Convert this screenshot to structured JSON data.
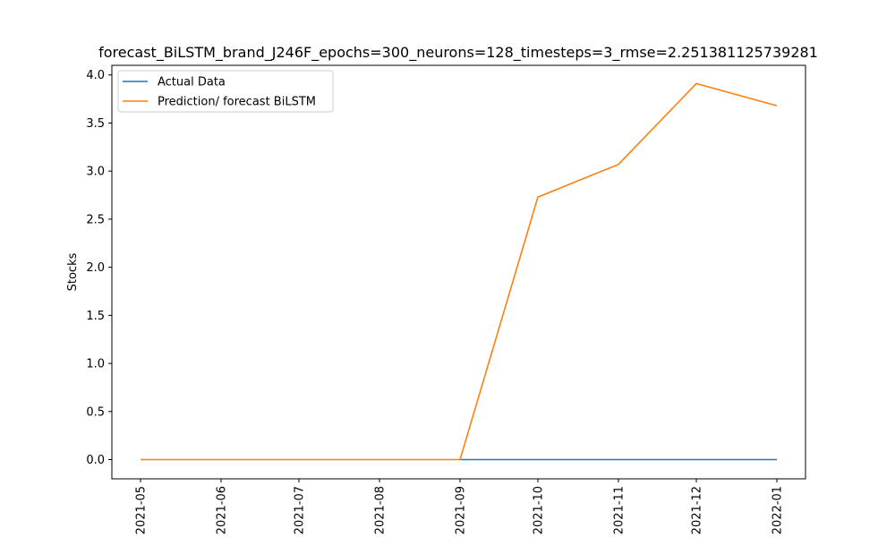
{
  "chart_data": {
    "type": "line",
    "title": "forecast_BiLSTM_brand_J246F_epochs=300_neurons=128_timesteps=3_rmse=2.251381125739281",
    "xlabel": "",
    "ylabel": "Stocks",
    "x": [
      "2021-05-01",
      "2021-06-01",
      "2021-07-01",
      "2021-08-01",
      "2021-09-01",
      "2021-10-01",
      "2021-11-01",
      "2021-12-01",
      "2022-01-01"
    ],
    "x_tick_labels": [
      "2021-05",
      "2021-06",
      "2021-07",
      "2021-08",
      "2021-09",
      "2021-10",
      "2021-11",
      "2021-12",
      "2022-01"
    ],
    "y_ticks": [
      0.0,
      0.5,
      1.0,
      1.5,
      2.0,
      2.5,
      3.0,
      3.5,
      4.0
    ],
    "y_tick_labels": [
      "0.0",
      "0.5",
      "1.0",
      "1.5",
      "2.0",
      "2.5",
      "3.0",
      "3.5",
      "4.0"
    ],
    "ylim": [
      -0.2,
      4.1
    ],
    "grid": false,
    "legend_position": "top-left",
    "series": [
      {
        "name": "Actual Data",
        "color": "#1f77b4",
        "x": [
          "2021-09-01",
          "2021-10-01",
          "2021-11-01",
          "2021-12-01",
          "2022-01-01"
        ],
        "values": [
          0,
          0,
          0,
          0,
          0
        ]
      },
      {
        "name": "Prediction/ forecast BiLSTM",
        "color": "#ff7f0e",
        "x": [
          "2021-05-01",
          "2021-06-01",
          "2021-07-01",
          "2021-08-01",
          "2021-09-01",
          "2021-10-01",
          "2021-11-01",
          "2021-12-01",
          "2022-01-01"
        ],
        "values": [
          0,
          0,
          0,
          0,
          0,
          2.73,
          3.07,
          3.91,
          3.68
        ]
      }
    ]
  }
}
